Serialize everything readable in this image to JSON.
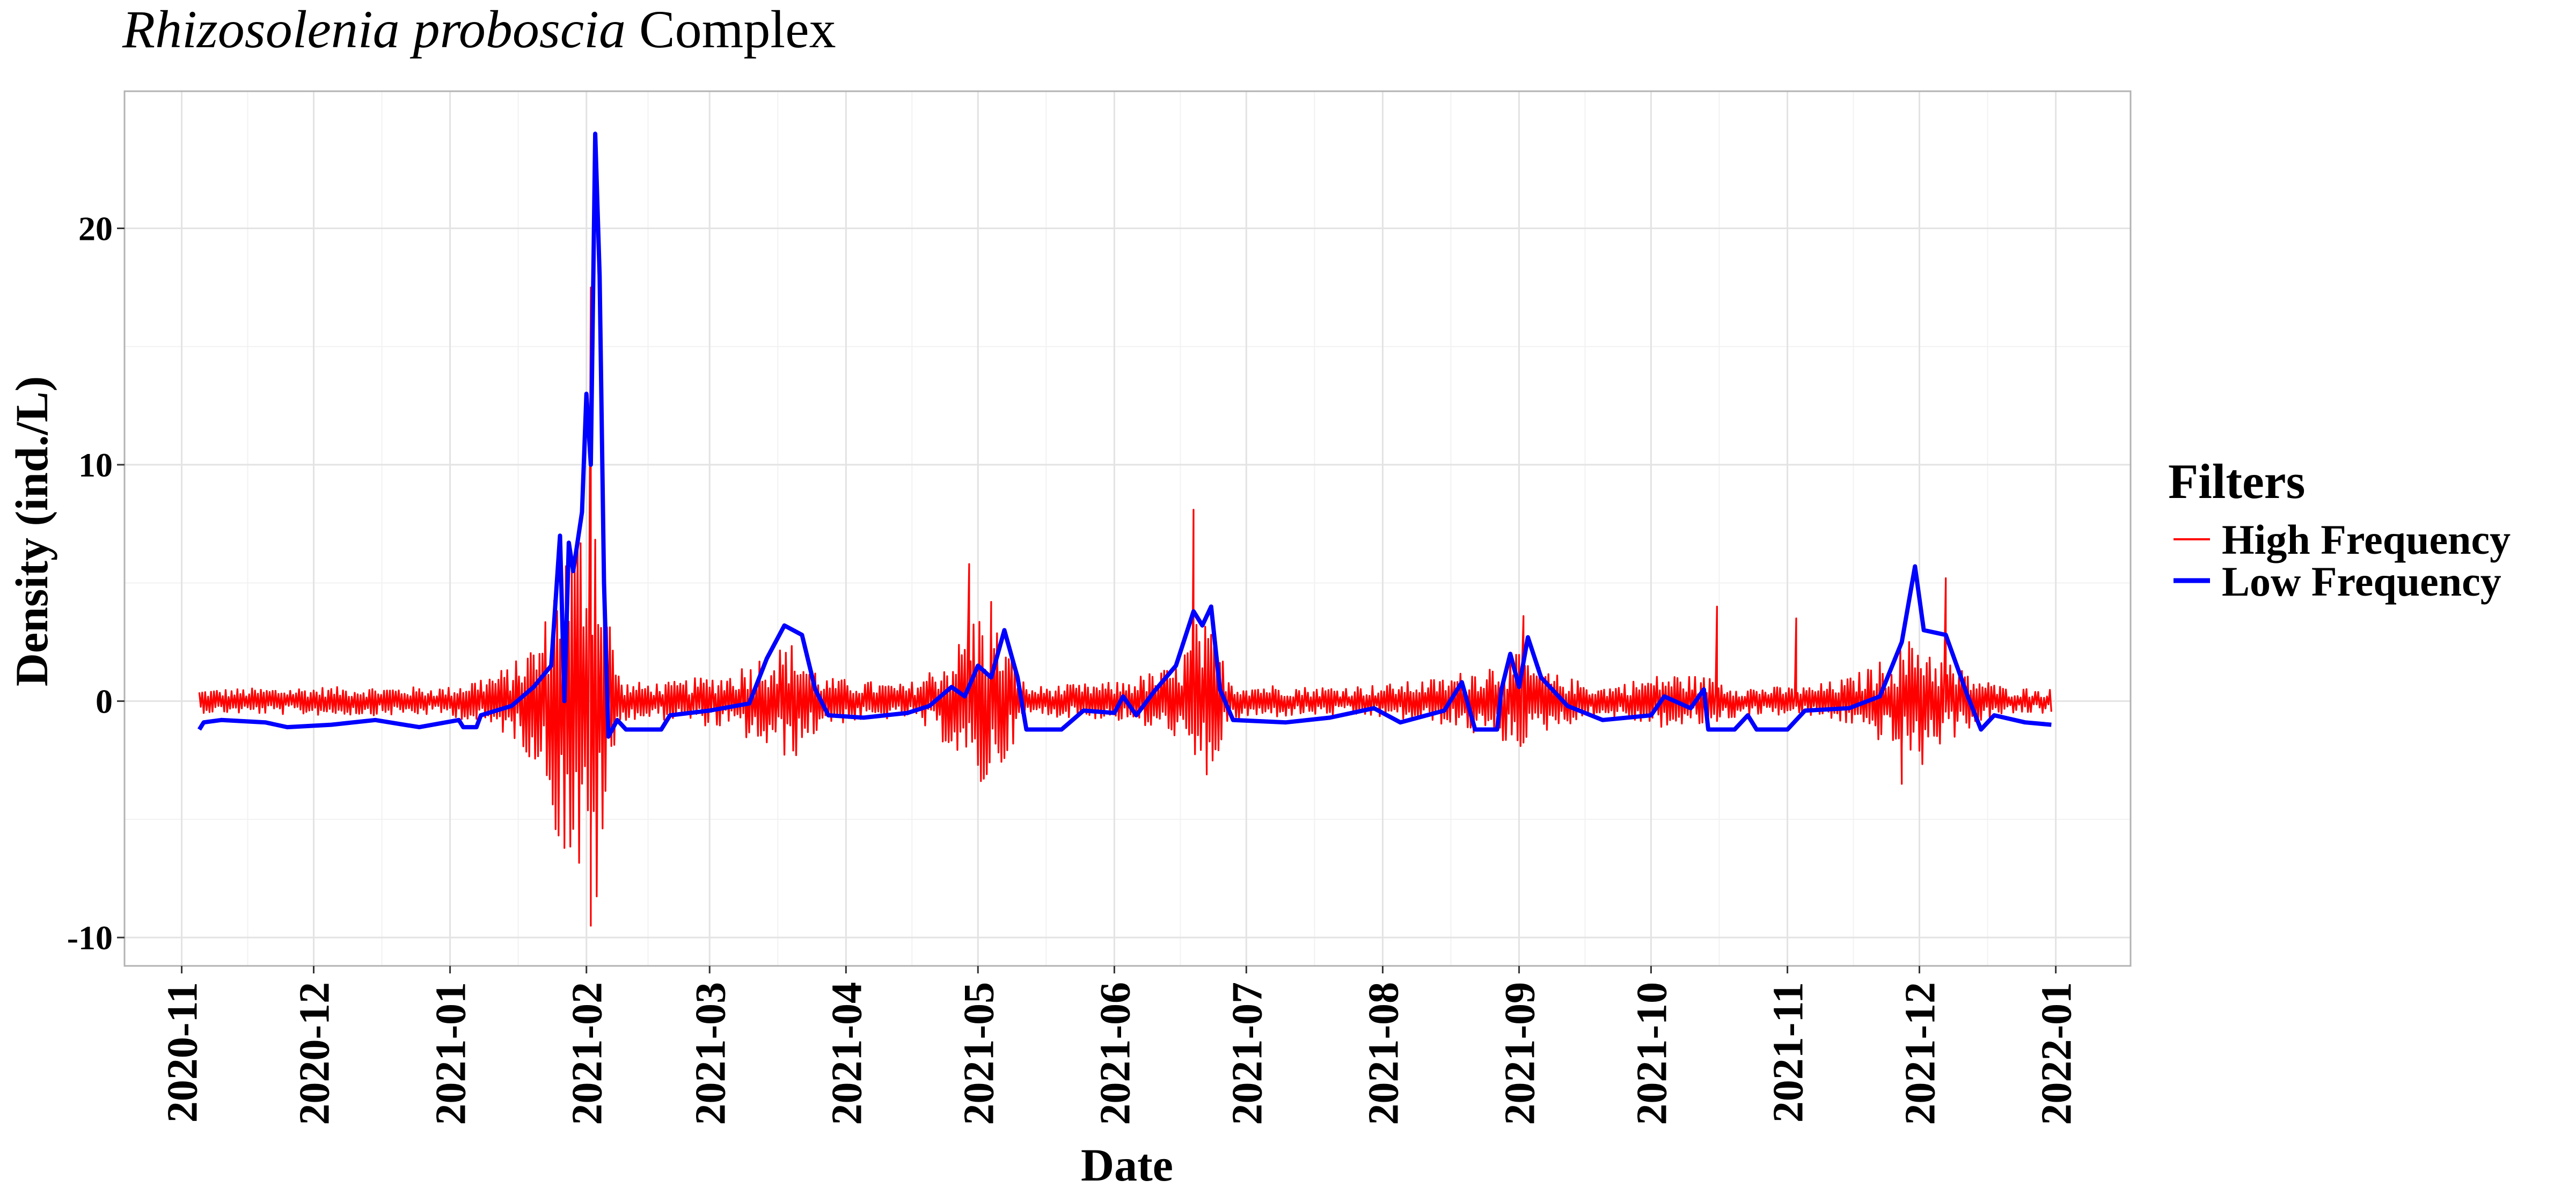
{
  "chart_data": {
    "type": "line",
    "title_italic": "Rhizosolenia proboscia",
    "title_rest": " Complex",
    "xlabel": "Date",
    "ylabel": "Density (ind./L)",
    "x_ticks": [
      "2020-11",
      "2020-12",
      "2021-01",
      "2021-02",
      "2021-03",
      "2021-04",
      "2021-05",
      "2021-06",
      "2021-07",
      "2021-08",
      "2021-09",
      "2021-10",
      "2021-11",
      "2021-12",
      "2022-01"
    ],
    "y_ticks": [
      -10,
      0,
      10,
      20
    ],
    "xlim": [
      "2020-10-19",
      "2022-01-18"
    ],
    "ylim": [
      -11.2,
      25.8
    ],
    "grid": true,
    "legend": {
      "title": "Filters",
      "position": "right"
    },
    "series": [
      {
        "name": "High Frequency",
        "color": "#ff0000",
        "style": "oscillating residual around zero (daily, estimated envelope)",
        "envelope": [
          [
            "2020-11-05",
            0.5
          ],
          [
            "2020-12-01",
            0.6
          ],
          [
            "2021-01-01",
            0.6
          ],
          [
            "2021-01-15",
            1.5
          ],
          [
            "2021-01-22",
            3.0
          ],
          [
            "2021-01-26",
            6.5
          ],
          [
            "2021-01-29",
            7.0
          ],
          [
            "2021-02-01",
            9.0
          ],
          [
            "2021-02-03",
            9.5
          ],
          [
            "2021-02-06",
            4.0
          ],
          [
            "2021-02-09",
            0.8
          ],
          [
            "2021-02-20",
            0.8
          ],
          [
            "2021-03-05",
            1.2
          ],
          [
            "2021-03-15",
            2.2
          ],
          [
            "2021-03-20",
            2.5
          ],
          [
            "2021-03-27",
            1.0
          ],
          [
            "2021-04-15",
            0.7
          ],
          [
            "2021-04-25",
            2.0
          ],
          [
            "2021-05-01",
            4.0
          ],
          [
            "2021-05-06",
            3.0
          ],
          [
            "2021-05-12",
            0.6
          ],
          [
            "2021-06-01",
            0.8
          ],
          [
            "2021-06-15",
            1.5
          ],
          [
            "2021-06-20",
            3.5
          ],
          [
            "2021-06-23",
            3.0
          ],
          [
            "2021-06-28",
            0.8
          ],
          [
            "2021-07-15",
            0.6
          ],
          [
            "2021-08-01",
            0.7
          ],
          [
            "2021-08-15",
            1.0
          ],
          [
            "2021-08-28",
            1.8
          ],
          [
            "2021-09-01",
            2.0
          ],
          [
            "2021-09-08",
            1.2
          ],
          [
            "2021-09-20",
            0.6
          ],
          [
            "2021-10-05",
            1.2
          ],
          [
            "2021-10-15",
            1.0
          ],
          [
            "2021-10-22",
            0.6
          ],
          [
            "2021-11-05",
            0.6
          ],
          [
            "2021-11-15",
            1.0
          ],
          [
            "2021-11-25",
            2.0
          ],
          [
            "2021-12-01",
            3.0
          ],
          [
            "2021-12-05",
            2.0
          ],
          [
            "2021-12-12",
            1.2
          ],
          [
            "2021-12-20",
            0.6
          ],
          [
            "2021-12-31",
            0.5
          ]
        ],
        "spikes": [
          [
            "2021-02-02",
            17.5
          ],
          [
            "2021-02-02",
            -9.5
          ],
          [
            "2021-01-27",
            -5.8
          ],
          [
            "2021-04-29",
            5.8
          ],
          [
            "2021-05-04",
            4.2
          ],
          [
            "2021-06-19",
            8.1
          ],
          [
            "2021-06-22",
            -3.1
          ],
          [
            "2021-09-02",
            3.6
          ],
          [
            "2021-10-16",
            4.0
          ],
          [
            "2021-11-03",
            3.5
          ],
          [
            "2021-12-07",
            5.2
          ],
          [
            "2021-11-27",
            -3.5
          ]
        ]
      },
      {
        "name": "Low Frequency",
        "color": "#0000ff",
        "style": "smoothed trend (estimated)",
        "points": [
          [
            "2020-11-05",
            -1.2
          ],
          [
            "2020-11-06",
            -0.9
          ],
          [
            "2020-11-10",
            -0.8
          ],
          [
            "2020-11-20",
            -0.9
          ],
          [
            "2020-11-25",
            -1.1
          ],
          [
            "2020-12-05",
            -1.0
          ],
          [
            "2020-12-15",
            -0.8
          ],
          [
            "2020-12-25",
            -1.1
          ],
          [
            "2021-01-03",
            -0.8
          ],
          [
            "2021-01-04",
            -1.1
          ],
          [
            "2021-01-07",
            -1.1
          ],
          [
            "2021-01-08",
            -0.6
          ],
          [
            "2021-01-15",
            -0.2
          ],
          [
            "2021-01-20",
            0.6
          ],
          [
            "2021-01-24",
            1.5
          ],
          [
            "2021-01-26",
            7.0
          ],
          [
            "2021-01-27",
            0.0
          ],
          [
            "2021-01-28",
            6.7
          ],
          [
            "2021-01-29",
            5.5
          ],
          [
            "2021-01-31",
            8.0
          ],
          [
            "2021-02-01",
            13.0
          ],
          [
            "2021-02-02",
            10.0
          ],
          [
            "2021-02-03",
            24.0
          ],
          [
            "2021-02-04",
            18.0
          ],
          [
            "2021-02-05",
            5.0
          ],
          [
            "2021-02-06",
            -1.5
          ],
          [
            "2021-02-08",
            -0.8
          ],
          [
            "2021-02-10",
            -1.2
          ],
          [
            "2021-02-18",
            -1.2
          ],
          [
            "2021-02-20",
            -0.6
          ],
          [
            "2021-03-01",
            -0.4
          ],
          [
            "2021-03-10",
            -0.1
          ],
          [
            "2021-03-14",
            1.8
          ],
          [
            "2021-03-18",
            3.2
          ],
          [
            "2021-03-22",
            2.8
          ],
          [
            "2021-03-25",
            0.5
          ],
          [
            "2021-03-28",
            -0.6
          ],
          [
            "2021-04-05",
            -0.7
          ],
          [
            "2021-04-15",
            -0.5
          ],
          [
            "2021-04-20",
            -0.2
          ],
          [
            "2021-04-25",
            0.6
          ],
          [
            "2021-04-28",
            0.2
          ],
          [
            "2021-05-01",
            1.5
          ],
          [
            "2021-05-04",
            1.0
          ],
          [
            "2021-05-07",
            3.0
          ],
          [
            "2021-05-10",
            1.0
          ],
          [
            "2021-05-12",
            -1.2
          ],
          [
            "2021-05-20",
            -1.2
          ],
          [
            "2021-05-25",
            -0.4
          ],
          [
            "2021-06-01",
            -0.5
          ],
          [
            "2021-06-03",
            0.2
          ],
          [
            "2021-06-06",
            -0.6
          ],
          [
            "2021-06-10",
            0.4
          ],
          [
            "2021-06-15",
            1.5
          ],
          [
            "2021-06-19",
            3.8
          ],
          [
            "2021-06-21",
            3.2
          ],
          [
            "2021-06-23",
            4.0
          ],
          [
            "2021-06-25",
            0.5
          ],
          [
            "2021-06-28",
            -0.8
          ],
          [
            "2021-07-10",
            -0.9
          ],
          [
            "2021-07-20",
            -0.7
          ],
          [
            "2021-07-30",
            -0.3
          ],
          [
            "2021-08-05",
            -0.9
          ],
          [
            "2021-08-15",
            -0.4
          ],
          [
            "2021-08-19",
            0.8
          ],
          [
            "2021-08-22",
            -1.2
          ],
          [
            "2021-08-27",
            -1.2
          ],
          [
            "2021-08-28",
            0.5
          ],
          [
            "2021-08-30",
            2.0
          ],
          [
            "2021-09-01",
            0.6
          ],
          [
            "2021-09-03",
            2.7
          ],
          [
            "2021-09-06",
            1.0
          ],
          [
            "2021-09-12",
            -0.2
          ],
          [
            "2021-09-20",
            -0.8
          ],
          [
            "2021-10-01",
            -0.6
          ],
          [
            "2021-10-04",
            0.2
          ],
          [
            "2021-10-10",
            -0.3
          ],
          [
            "2021-10-13",
            0.5
          ],
          [
            "2021-10-14",
            -1.2
          ],
          [
            "2021-10-20",
            -1.2
          ],
          [
            "2021-10-23",
            -0.6
          ],
          [
            "2021-10-25",
            -1.2
          ],
          [
            "2021-11-01",
            -1.2
          ],
          [
            "2021-11-05",
            -0.4
          ],
          [
            "2021-11-15",
            -0.3
          ],
          [
            "2021-11-22",
            0.2
          ],
          [
            "2021-11-27",
            2.5
          ],
          [
            "2021-11-30",
            5.7
          ],
          [
            "2021-12-02",
            3.0
          ],
          [
            "2021-12-07",
            2.8
          ],
          [
            "2021-12-12",
            0.2
          ],
          [
            "2021-12-15",
            -1.2
          ],
          [
            "2021-12-18",
            -0.6
          ],
          [
            "2021-12-25",
            -0.9
          ],
          [
            "2021-12-31",
            -1.0
          ]
        ]
      }
    ]
  }
}
